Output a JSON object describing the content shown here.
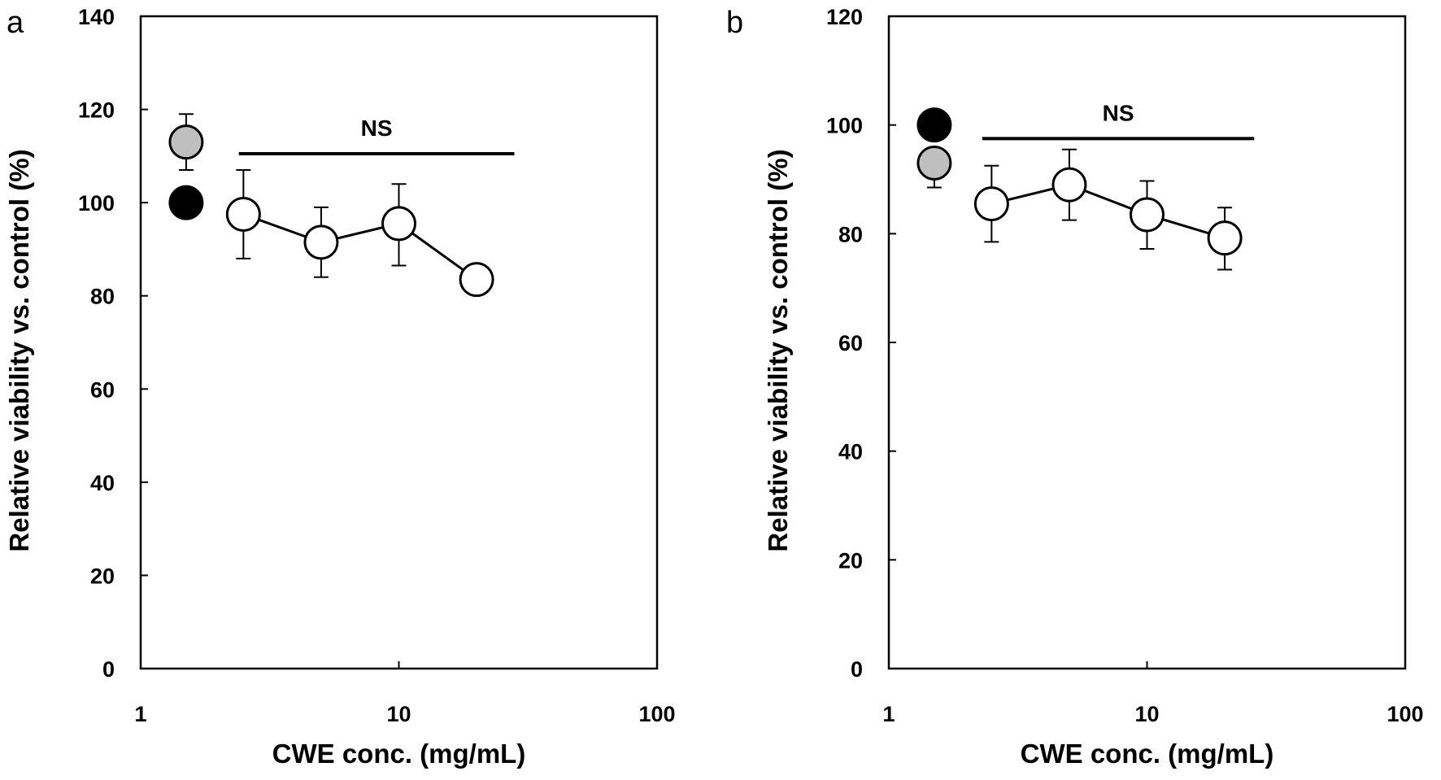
{
  "chart_data": [
    {
      "panel_label": "a",
      "type": "scatter",
      "xlabel": "CWE conc. (mg/mL)",
      "ylabel": "Relative viability vs. control (%)",
      "x_scale": "log",
      "xlim": [
        1,
        100
      ],
      "ylim": [
        0,
        140
      ],
      "x_ticks": [
        1,
        10,
        100
      ],
      "x_tick_labels": [
        "1",
        "10",
        "100"
      ],
      "y_ticks": [
        0,
        20,
        40,
        60,
        80,
        100,
        120,
        140
      ],
      "y_tick_labels": [
        "0",
        "20",
        "40",
        "60",
        "80",
        "100",
        "120",
        "140"
      ],
      "grid": false,
      "series": [
        {
          "marker": "open-circle",
          "color": "#ffffff",
          "connected": true,
          "points": [
            {
              "x": 2.5,
              "y": 97.5,
              "err_lo": 9.5,
              "err_hi": 9.5
            },
            {
              "x": 5,
              "y": 91.5,
              "err_lo": 7.5,
              "err_hi": 7.5
            },
            {
              "x": 10,
              "y": 95.5,
              "err_lo": 9,
              "err_hi": 8.5
            },
            {
              "x": 20,
              "y": 83.5,
              "err_lo": 0,
              "err_hi": 0
            }
          ]
        },
        {
          "marker": "grey-circle",
          "color": "#bfbfbf",
          "connected": false,
          "points": [
            {
              "x": 1.5,
              "y": 113,
              "err_lo": 6,
              "err_hi": 6
            }
          ]
        },
        {
          "marker": "black-circle",
          "color": "#000000",
          "connected": false,
          "points": [
            {
              "x": 1.5,
              "y": 100,
              "err_lo": 0,
              "err_hi": 0
            }
          ]
        }
      ],
      "annotation": {
        "text": "NS",
        "x_from": 2.4,
        "x_to": 28,
        "y": 110.5
      }
    },
    {
      "panel_label": "b",
      "type": "scatter",
      "xlabel": "CWE conc. (mg/mL)",
      "ylabel": "Relative viability vs. control (%)",
      "x_scale": "log",
      "xlim": [
        1,
        100
      ],
      "ylim": [
        0,
        120
      ],
      "x_ticks": [
        1,
        10,
        100
      ],
      "x_tick_labels": [
        "1",
        "10",
        "100"
      ],
      "y_ticks": [
        0,
        20,
        40,
        60,
        80,
        100,
        120
      ],
      "y_tick_labels": [
        "0",
        "20",
        "40",
        "60",
        "80",
        "100",
        "120"
      ],
      "grid": false,
      "series": [
        {
          "marker": "open-circle",
          "color": "#ffffff",
          "connected": true,
          "points": [
            {
              "x": 2.5,
              "y": 85.5,
              "err_lo": 7,
              "err_hi": 7
            },
            {
              "x": 5,
              "y": 89,
              "err_lo": 6.5,
              "err_hi": 6.5
            },
            {
              "x": 10,
              "y": 83.5,
              "err_lo": 6.3,
              "err_hi": 6.2
            },
            {
              "x": 20,
              "y": 79.2,
              "err_lo": 5.8,
              "err_hi": 5.6
            }
          ]
        },
        {
          "marker": "grey-circle",
          "color": "#bfbfbf",
          "connected": false,
          "points": [
            {
              "x": 1.5,
              "y": 93,
              "err_lo": 4.5,
              "err_hi": 0
            }
          ]
        },
        {
          "marker": "black-circle",
          "color": "#000000",
          "connected": false,
          "points": [
            {
              "x": 1.5,
              "y": 100,
              "err_lo": 0,
              "err_hi": 0
            }
          ]
        }
      ],
      "annotation": {
        "text": "NS",
        "x_from": 2.3,
        "x_to": 26,
        "y": 97.5
      }
    }
  ]
}
